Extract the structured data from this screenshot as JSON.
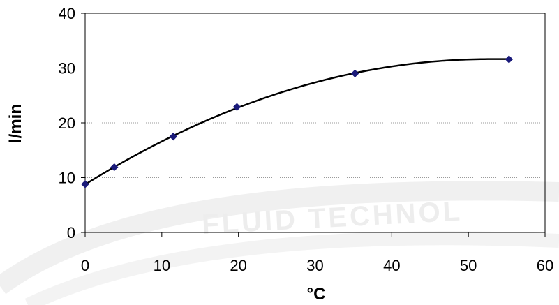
{
  "chart_data": {
    "type": "scatter",
    "title": "",
    "xlabel": "°C",
    "ylabel": "l/min",
    "xlim": [
      0,
      60
    ],
    "ylim": [
      0,
      40
    ],
    "x_ticks": [
      "0",
      "10",
      "20",
      "30",
      "40",
      "50",
      "60"
    ],
    "y_ticks": [
      "0",
      "10",
      "20",
      "30",
      "40"
    ],
    "grid": {
      "horizontal": true,
      "vertical": false,
      "style": "dotted"
    },
    "legend": "none",
    "series": [
      {
        "marker": "diamond",
        "marker_color": "#1a1a7a",
        "line_color": "#000000",
        "line": "smoothed trend curve",
        "points": [
          {
            "x": 0,
            "y": 8.8
          },
          {
            "x": 3.8,
            "y": 11.9
          },
          {
            "x": 11.5,
            "y": 17.5
          },
          {
            "x": 19.8,
            "y": 22.9
          },
          {
            "x": 35.2,
            "y": 29.0
          },
          {
            "x": 55.3,
            "y": 31.6
          }
        ]
      }
    ]
  },
  "watermark": {
    "text": "FLUID TECHNOL",
    "color": "#ededed"
  }
}
